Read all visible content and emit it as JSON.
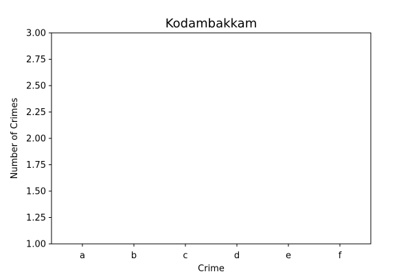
{
  "chart_data": {
    "type": "bar",
    "title": "Kodambakkam",
    "xlabel": "Crime",
    "ylabel": "Number of Crimes",
    "categories": [
      "a",
      "b",
      "c",
      "d",
      "e",
      "f"
    ],
    "values": [
      1,
      1,
      1,
      1,
      1,
      1
    ],
    "ylim": [
      1.0,
      3.0
    ],
    "yticks": [
      "1.00",
      "1.25",
      "1.50",
      "1.75",
      "2.00",
      "2.25",
      "2.50",
      "2.75",
      "3.00"
    ],
    "grid": false,
    "legend": "none"
  }
}
